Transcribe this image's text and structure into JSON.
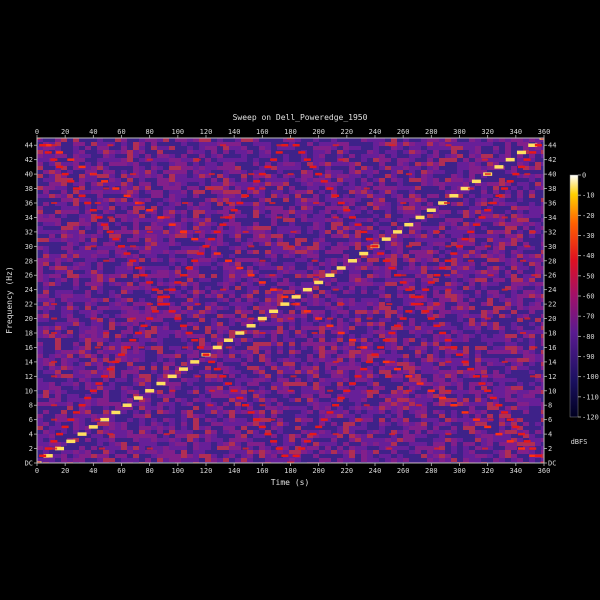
{
  "chart_data": {
    "type": "heatmap",
    "title": "Sweep on Dell_Poweredge_1950",
    "xlabel": "Time (s)",
    "ylabel": "Frequency (Hz)",
    "xlim": [
      0,
      360
    ],
    "ylim": [
      0,
      45
    ],
    "x_ticks": [
      0,
      20,
      40,
      60,
      80,
      100,
      120,
      140,
      160,
      180,
      200,
      220,
      240,
      260,
      280,
      300,
      320,
      340,
      360
    ],
    "x_tick_labels": [
      "0",
      "20",
      "40",
      "60",
      "80",
      "100",
      "120",
      "140",
      "160",
      "180",
      "200",
      "220",
      "240",
      "260",
      "280",
      "300",
      "320",
      "340",
      "360"
    ],
    "y_ticks": [
      0,
      2,
      4,
      6,
      8,
      10,
      12,
      14,
      16,
      18,
      20,
      22,
      24,
      26,
      28,
      30,
      32,
      34,
      36,
      38,
      40,
      42,
      44
    ],
    "y_tick_labels": [
      "DC",
      "2",
      "4",
      "6",
      "8",
      "10",
      "12",
      "14",
      "16",
      "18",
      "20",
      "22",
      "24",
      "26",
      "28",
      "30",
      "32",
      "34",
      "36",
      "38",
      "40",
      "42",
      "44"
    ],
    "ridges": [
      {
        "desc": "rising fundamental",
        "from": [
          0,
          0
        ],
        "to": [
          360,
          45
        ],
        "level_dbfs": -5
      },
      {
        "desc": "falling mirror",
        "from": [
          0,
          45
        ],
        "to": [
          360,
          0
        ],
        "level_dbfs": -25
      },
      {
        "desc": "folded harmonic rising",
        "from": [
          0,
          0
        ],
        "to": [
          180,
          45
        ],
        "level_dbfs": -35
      },
      {
        "desc": "folded harmonic falling",
        "from": [
          180,
          45
        ],
        "to": [
          360,
          0
        ],
        "level_dbfs": -35
      },
      {
        "desc": "folded harmonic falling",
        "from": [
          0,
          45
        ],
        "to": [
          180,
          0
        ],
        "level_dbfs": -38
      },
      {
        "desc": "folded harmonic rising",
        "from": [
          180,
          0
        ],
        "to": [
          360,
          45
        ],
        "level_dbfs": -38
      }
    ],
    "colorbar": {
      "unit": "dBFS",
      "range": [
        -120,
        0
      ],
      "tick_values": [
        0,
        -10,
        -20,
        -30,
        -40,
        -50,
        -60,
        -70,
        -80,
        -90,
        -100,
        -110,
        -120
      ],
      "tick_labels": [
        "0",
        "-10",
        "-20",
        "-30",
        "-40",
        "-50",
        "-60",
        "-70",
        "-80",
        "-90",
        "-100",
        "-110",
        "-120"
      ],
      "stops": [
        "#000020",
        "#1a1060",
        "#5a1a90",
        "#a0106a",
        "#e01020",
        "#ff6000",
        "#ffd000",
        "#ffffff"
      ]
    },
    "background_colors": [
      "#3a2288",
      "#6a1f9a",
      "#8a1f8a",
      "#c0304a"
    ],
    "grid": false,
    "legend": "colorbar-right"
  }
}
